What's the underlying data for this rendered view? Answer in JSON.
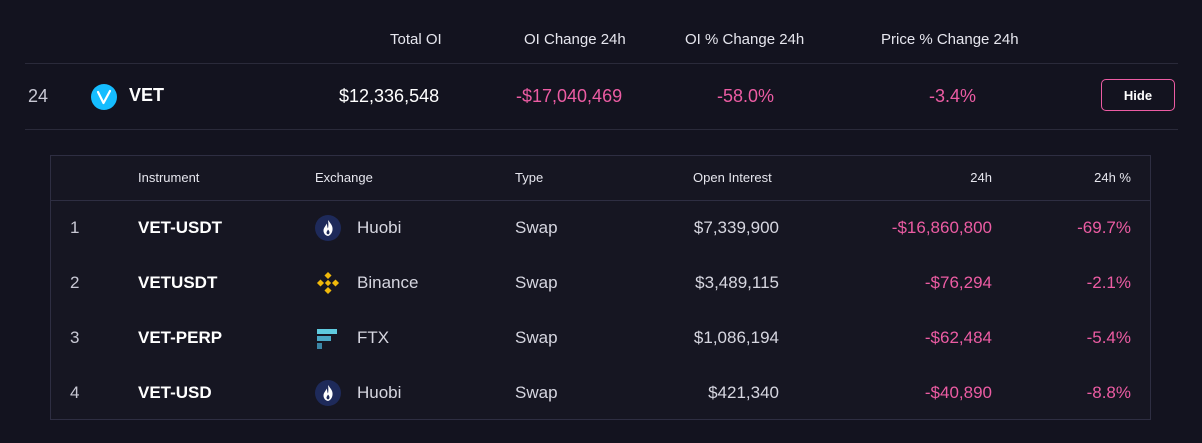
{
  "header": {
    "columns": {
      "total_oi": "Total OI",
      "oi_change_24h": "OI Change 24h",
      "oi_pct_change_24h": "OI % Change 24h",
      "price_pct_change_24h": "Price % Change 24h"
    }
  },
  "coin_row": {
    "rank": "24",
    "icon": "vechain-icon",
    "symbol": "VET",
    "total_oi": "$12,336,548",
    "oi_change_24h": "-$17,040,469",
    "oi_pct_change_24h": "-58.0%",
    "price_pct_change_24h": "-3.4%",
    "hide_label": "Hide"
  },
  "instruments": {
    "columns": {
      "instrument": "Instrument",
      "exchange": "Exchange",
      "type": "Type",
      "open_interest": "Open Interest",
      "change_24h": "24h",
      "change_24h_pct": "24h %"
    },
    "rows": [
      {
        "index": "1",
        "instrument": "VET-USDT",
        "exchange": "Huobi",
        "exchange_icon": "huobi-icon",
        "type": "Swap",
        "open_interest": "$7,339,900",
        "change_24h": "-$16,860,800",
        "change_24h_pct": "-69.7%"
      },
      {
        "index": "2",
        "instrument": "VETUSDT",
        "exchange": "Binance",
        "exchange_icon": "binance-icon",
        "type": "Swap",
        "open_interest": "$3,489,115",
        "change_24h": "-$76,294",
        "change_24h_pct": "-2.1%"
      },
      {
        "index": "3",
        "instrument": "VET-PERP",
        "exchange": "FTX",
        "exchange_icon": "ftx-icon",
        "type": "Swap",
        "open_interest": "$1,086,194",
        "change_24h": "-$62,484",
        "change_24h_pct": "-5.4%"
      },
      {
        "index": "4",
        "instrument": "VET-USD",
        "exchange": "Huobi",
        "exchange_icon": "huobi-icon",
        "type": "Swap",
        "open_interest": "$421,340",
        "change_24h": "-$40,890",
        "change_24h_pct": "-8.8%"
      }
    ]
  },
  "colors": {
    "background": "#13131f",
    "negative": "#ec5ca3",
    "accent_border": "#ec5ca3",
    "vechain_blue": "#15bdff",
    "huobi_navy": "#1e2a5a",
    "binance_gold": "#f0b90b",
    "ftx_teal": "#5fcade"
  }
}
